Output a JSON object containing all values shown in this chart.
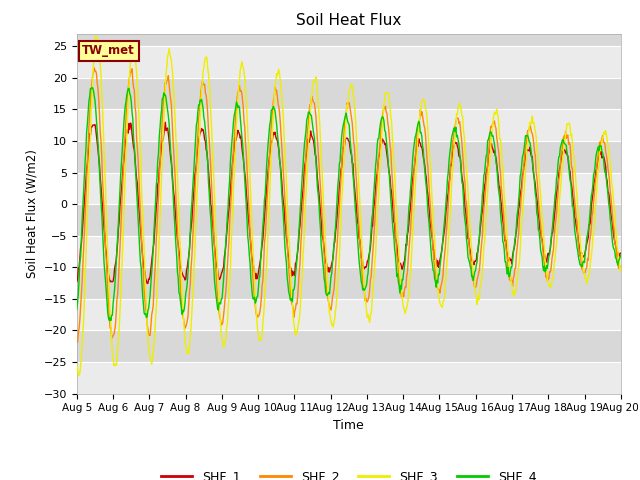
{
  "title": "Soil Heat Flux",
  "xlabel": "Time",
  "ylabel": "Soil Heat Flux (W/m2)",
  "ylim": [
    -30,
    27
  ],
  "background_color": "#ffffff",
  "plot_bg_light": "#ebebeb",
  "plot_bg_dark": "#d8d8d8",
  "grid_color": "#ffffff",
  "label_box": "TW_met",
  "label_box_bg": "#ffff99",
  "label_box_edge": "#8B0000",
  "series_colors": {
    "SHF_1": "#cc0000",
    "SHF_2": "#ff8800",
    "SHF_3": "#eeee00",
    "SHF_4": "#00cc00"
  },
  "x_tick_labels": [
    "Aug 5",
    "Aug 6",
    "Aug 7",
    "Aug 8",
    "Aug 9",
    "Aug 10",
    "Aug 11",
    "Aug 12",
    "Aug 13",
    "Aug 14",
    "Aug 15",
    "Aug 16",
    "Aug 17",
    "Aug 18",
    "Aug 19",
    "Aug 20"
  ],
  "yticks": [
    -30,
    -25,
    -20,
    -15,
    -10,
    -5,
    0,
    5,
    10,
    15,
    20,
    25
  ],
  "legend_entries": [
    "SHF_1",
    "SHF_2",
    "SHF_3",
    "SHF_4"
  ]
}
